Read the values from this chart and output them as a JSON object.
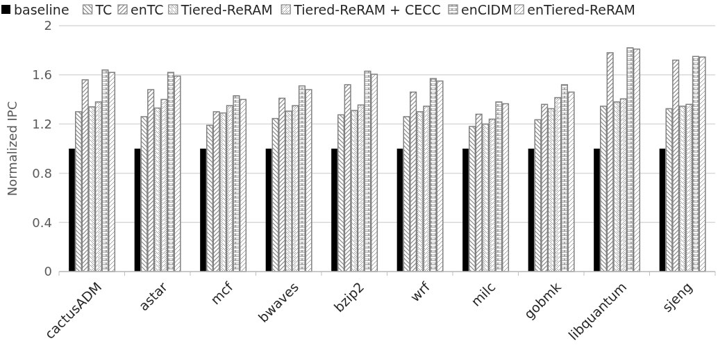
{
  "chart_data": {
    "type": "bar",
    "ylabel": "Normalized IPC",
    "categories": [
      "cactusADM",
      "astar",
      "mcf",
      "bwaves",
      "bzip2",
      "wrf",
      "milc",
      "gobmk",
      "libquantum",
      "sjeng"
    ],
    "series": [
      {
        "name": "baseline",
        "color": "#000000",
        "values": [
          1,
          1,
          1,
          1,
          1,
          1,
          1,
          1,
          1,
          1
        ]
      },
      {
        "name": "TC",
        "color": "#808080",
        "values": [
          1.3,
          1.26,
          1.19,
          1.245,
          1.275,
          1.26,
          1.18,
          1.235,
          1.345,
          1.325
        ]
      },
      {
        "name": "enTC",
        "color": "#808080",
        "values": [
          1.56,
          1.48,
          1.3,
          1.41,
          1.52,
          1.46,
          1.28,
          1.36,
          1.78,
          1.72
        ]
      },
      {
        "name": "Tiered-ReRAM",
        "color": "#808080",
        "values": [
          1.34,
          1.33,
          1.29,
          1.305,
          1.31,
          1.3,
          1.2,
          1.325,
          1.38,
          1.345
        ]
      },
      {
        "name": "Tiered-ReRAM + CECC",
        "color": "#808080",
        "values": [
          1.38,
          1.4,
          1.35,
          1.35,
          1.355,
          1.345,
          1.24,
          1.415,
          1.405,
          1.36
        ]
      },
      {
        "name": "enCIDM",
        "color": "#808080",
        "values": [
          1.64,
          1.62,
          1.43,
          1.51,
          1.63,
          1.57,
          1.38,
          1.52,
          1.82,
          1.75
        ]
      },
      {
        "name": "enTiered-ReRAM",
        "color": "#808080",
        "values": [
          1.62,
          1.59,
          1.4,
          1.48,
          1.605,
          1.55,
          1.365,
          1.46,
          1.81,
          1.745
        ]
      }
    ],
    "ylim": [
      0,
      2
    ],
    "yticks": [
      0,
      0.4,
      0.8,
      1.2,
      1.6,
      2
    ],
    "grid": "y",
    "legend": "top"
  }
}
